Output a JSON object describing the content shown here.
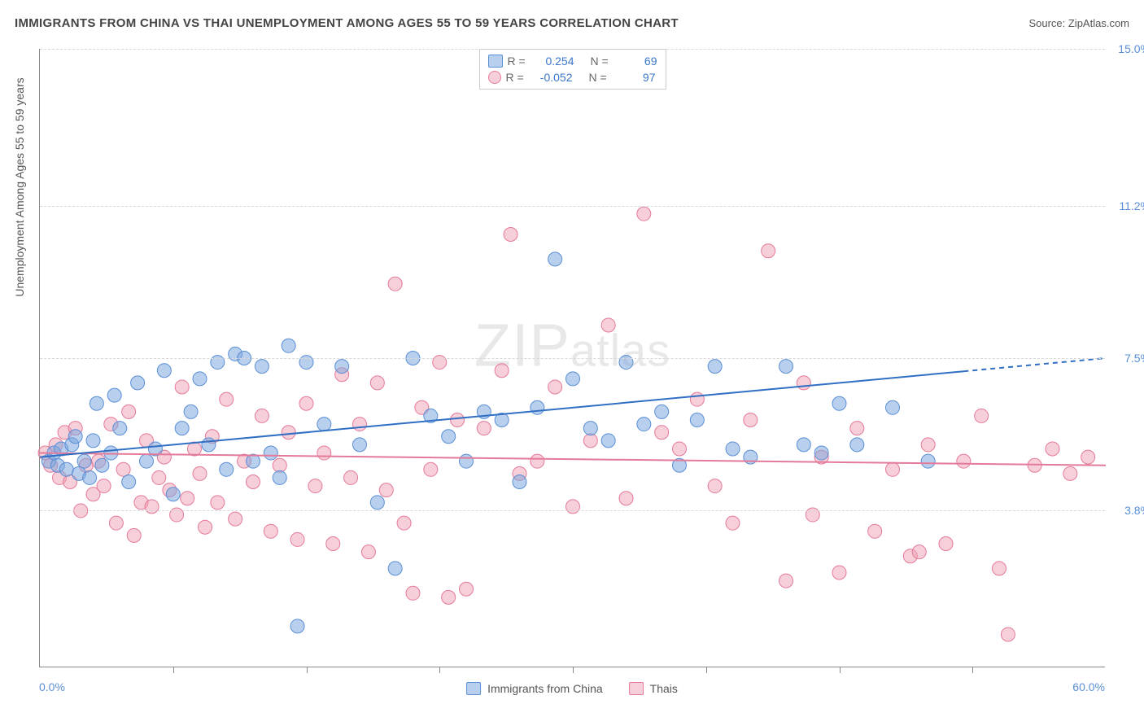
{
  "header": {
    "title": "IMMIGRANTS FROM CHINA VS THAI UNEMPLOYMENT AMONG AGES 55 TO 59 YEARS CORRELATION CHART",
    "source": "Source: ZipAtlas.com"
  },
  "watermark": {
    "part1": "ZIP",
    "part2": "atlas"
  },
  "chart": {
    "type": "scatter",
    "ylabel": "Unemployment Among Ages 55 to 59 years",
    "xlim": [
      0,
      60
    ],
    "ylim": [
      0,
      15
    ],
    "x_min_label": "0.0%",
    "x_max_label": "60.0%",
    "y_ticks": [
      3.8,
      7.5,
      11.2,
      15.0
    ],
    "y_tick_labels": [
      "3.8%",
      "7.5%",
      "11.2%",
      "15.0%"
    ],
    "x_tick_positions": [
      7.5,
      15,
      22.5,
      30,
      37.5,
      45,
      52.5
    ],
    "grid_color": "#d8d8d8",
    "axis_color": "#888888",
    "background_color": "#ffffff",
    "tick_label_color": "#5a8fd6",
    "series": {
      "blue": {
        "name": "Immigrants from China",
        "fill": "rgba(126,168,222,0.55)",
        "stroke": "#5a8fd6",
        "r_label": "R =",
        "r_value": "0.254",
        "n_label": "N =",
        "n_value": "69",
        "trend": {
          "y_at_xmin": 5.1,
          "y_at_xmax": 7.5,
          "solid_until_x": 52,
          "color": "#2f6fc4",
          "width": 2
        },
        "points": [
          [
            0.5,
            5.0
          ],
          [
            0.8,
            5.2
          ],
          [
            1.0,
            4.9
          ],
          [
            1.2,
            5.3
          ],
          [
            1.5,
            4.8
          ],
          [
            1.8,
            5.4
          ],
          [
            2.0,
            5.6
          ],
          [
            2.2,
            4.7
          ],
          [
            2.5,
            5.0
          ],
          [
            2.8,
            4.6
          ],
          [
            3.0,
            5.5
          ],
          [
            3.2,
            6.4
          ],
          [
            3.5,
            4.9
          ],
          [
            4.0,
            5.2
          ],
          [
            4.2,
            6.6
          ],
          [
            4.5,
            5.8
          ],
          [
            5.0,
            4.5
          ],
          [
            5.5,
            6.9
          ],
          [
            6.0,
            5.0
          ],
          [
            6.5,
            5.3
          ],
          [
            7.0,
            7.2
          ],
          [
            7.5,
            4.2
          ],
          [
            8.0,
            5.8
          ],
          [
            8.5,
            6.2
          ],
          [
            9.0,
            7.0
          ],
          [
            9.5,
            5.4
          ],
          [
            10.0,
            7.4
          ],
          [
            10.5,
            4.8
          ],
          [
            11.0,
            7.6
          ],
          [
            11.5,
            7.5
          ],
          [
            12.0,
            5.0
          ],
          [
            12.5,
            7.3
          ],
          [
            13.0,
            5.2
          ],
          [
            13.5,
            4.6
          ],
          [
            14.0,
            7.8
          ],
          [
            14.5,
            1.0
          ],
          [
            15.0,
            7.4
          ],
          [
            16.0,
            5.9
          ],
          [
            17.0,
            7.3
          ],
          [
            18.0,
            5.4
          ],
          [
            19.0,
            4.0
          ],
          [
            20.0,
            2.4
          ],
          [
            21.0,
            7.5
          ],
          [
            22.0,
            6.1
          ],
          [
            23.0,
            5.6
          ],
          [
            24.0,
            5.0
          ],
          [
            25.0,
            6.2
          ],
          [
            26.0,
            6.0
          ],
          [
            27.0,
            4.5
          ],
          [
            28.0,
            6.3
          ],
          [
            29.0,
            9.9
          ],
          [
            30.0,
            7.0
          ],
          [
            31.0,
            5.8
          ],
          [
            32.0,
            5.5
          ],
          [
            33.0,
            7.4
          ],
          [
            34.0,
            5.9
          ],
          [
            35.0,
            6.2
          ],
          [
            36.0,
            4.9
          ],
          [
            37.0,
            6.0
          ],
          [
            38.0,
            7.3
          ],
          [
            39.0,
            5.3
          ],
          [
            40.0,
            5.1
          ],
          [
            42.0,
            7.3
          ],
          [
            43.0,
            5.4
          ],
          [
            44.0,
            5.2
          ],
          [
            45.0,
            6.4
          ],
          [
            46.0,
            5.4
          ],
          [
            48.0,
            6.3
          ],
          [
            50.0,
            5.0
          ]
        ]
      },
      "pink": {
        "name": "Thais",
        "fill": "rgba(240,160,180,0.5)",
        "stroke": "#e47a9a",
        "r_label": "R =",
        "r_value": "-0.052",
        "n_label": "N =",
        "n_value": "97",
        "trend": {
          "y_at_xmin": 5.2,
          "y_at_xmax": 4.9,
          "solid_until_x": 60,
          "color": "#e47a9a",
          "width": 2
        },
        "points": [
          [
            0.3,
            5.2
          ],
          [
            0.6,
            4.9
          ],
          [
            0.9,
            5.4
          ],
          [
            1.1,
            4.6
          ],
          [
            1.4,
            5.7
          ],
          [
            1.7,
            4.5
          ],
          [
            2.0,
            5.8
          ],
          [
            2.3,
            3.8
          ],
          [
            2.6,
            4.9
          ],
          [
            3.0,
            4.2
          ],
          [
            3.3,
            5.0
          ],
          [
            3.6,
            4.4
          ],
          [
            4.0,
            5.9
          ],
          [
            4.3,
            3.5
          ],
          [
            4.7,
            4.8
          ],
          [
            5.0,
            6.2
          ],
          [
            5.3,
            3.2
          ],
          [
            5.7,
            4.0
          ],
          [
            6.0,
            5.5
          ],
          [
            6.3,
            3.9
          ],
          [
            6.7,
            4.6
          ],
          [
            7.0,
            5.1
          ],
          [
            7.3,
            4.3
          ],
          [
            7.7,
            3.7
          ],
          [
            8.0,
            6.8
          ],
          [
            8.3,
            4.1
          ],
          [
            8.7,
            5.3
          ],
          [
            9.0,
            4.7
          ],
          [
            9.3,
            3.4
          ],
          [
            9.7,
            5.6
          ],
          [
            10.0,
            4.0
          ],
          [
            10.5,
            6.5
          ],
          [
            11.0,
            3.6
          ],
          [
            11.5,
            5.0
          ],
          [
            12.0,
            4.5
          ],
          [
            12.5,
            6.1
          ],
          [
            13.0,
            3.3
          ],
          [
            13.5,
            4.9
          ],
          [
            14.0,
            5.7
          ],
          [
            14.5,
            3.1
          ],
          [
            15.0,
            6.4
          ],
          [
            15.5,
            4.4
          ],
          [
            16.0,
            5.2
          ],
          [
            16.5,
            3.0
          ],
          [
            17.0,
            7.1
          ],
          [
            17.5,
            4.6
          ],
          [
            18.0,
            5.9
          ],
          [
            18.5,
            2.8
          ],
          [
            19.0,
            6.9
          ],
          [
            19.5,
            4.3
          ],
          [
            20.0,
            9.3
          ],
          [
            20.5,
            3.5
          ],
          [
            21.0,
            1.8
          ],
          [
            21.5,
            6.3
          ],
          [
            22.0,
            4.8
          ],
          [
            22.5,
            7.4
          ],
          [
            23.0,
            1.7
          ],
          [
            23.5,
            6.0
          ],
          [
            24.0,
            1.9
          ],
          [
            25.0,
            5.8
          ],
          [
            26.0,
            7.2
          ],
          [
            26.5,
            10.5
          ],
          [
            27.0,
            4.7
          ],
          [
            28.0,
            5.0
          ],
          [
            29.0,
            6.8
          ],
          [
            30.0,
            3.9
          ],
          [
            31.0,
            5.5
          ],
          [
            32.0,
            8.3
          ],
          [
            33.0,
            4.1
          ],
          [
            34.0,
            11.0
          ],
          [
            35.0,
            5.7
          ],
          [
            36.0,
            5.3
          ],
          [
            37.0,
            6.5
          ],
          [
            38.0,
            4.4
          ],
          [
            39.0,
            3.5
          ],
          [
            40.0,
            6.0
          ],
          [
            41.0,
            10.1
          ],
          [
            42.0,
            2.1
          ],
          [
            43.0,
            6.9
          ],
          [
            43.5,
            3.7
          ],
          [
            44.0,
            5.1
          ],
          [
            45.0,
            2.3
          ],
          [
            46.0,
            5.8
          ],
          [
            47.0,
            3.3
          ],
          [
            48.0,
            4.8
          ],
          [
            49.0,
            2.7
          ],
          [
            49.5,
            2.8
          ],
          [
            50.0,
            5.4
          ],
          [
            51.0,
            3.0
          ],
          [
            52.0,
            5.0
          ],
          [
            53.0,
            6.1
          ],
          [
            54.0,
            2.4
          ],
          [
            54.5,
            0.8
          ],
          [
            56.0,
            4.9
          ],
          [
            57.0,
            5.3
          ],
          [
            58.0,
            4.7
          ],
          [
            59.0,
            5.1
          ]
        ]
      }
    }
  },
  "legend_bottom": {
    "blue_label": "Immigrants from China",
    "pink_label": "Thais"
  }
}
